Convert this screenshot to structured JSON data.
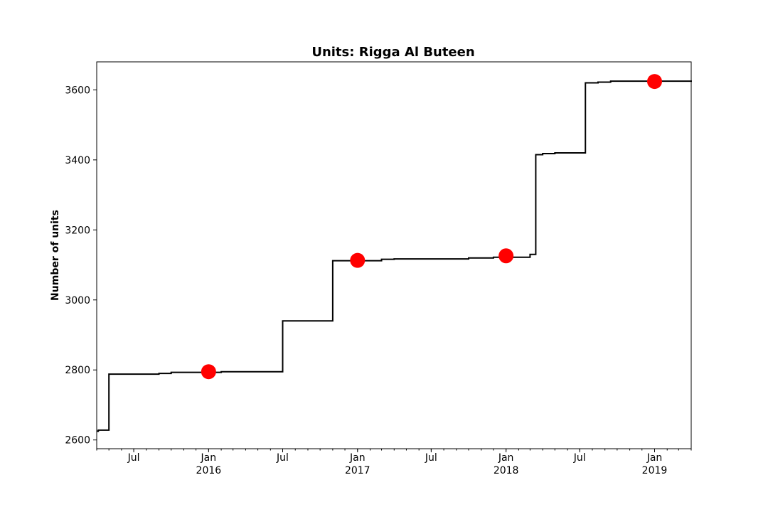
{
  "chart_data": {
    "type": "line",
    "title": "Units: Rigga Al Buteen",
    "xlabel": "",
    "ylabel": "Number of units",
    "xlim": [
      "2015-04-01",
      "2019-04-01"
    ],
    "ylim": [
      2575,
      3680
    ],
    "y_ticks": [
      2600,
      2800,
      3000,
      3200,
      3400,
      3600
    ],
    "x_ticks": [
      {
        "date": "2015-07-01",
        "label": "Jul",
        "sublabel": ""
      },
      {
        "date": "2016-01-01",
        "label": "Jan",
        "sublabel": "2016"
      },
      {
        "date": "2016-07-01",
        "label": "Jul",
        "sublabel": ""
      },
      {
        "date": "2017-01-01",
        "label": "Jan",
        "sublabel": "2017"
      },
      {
        "date": "2017-07-01",
        "label": "Jul",
        "sublabel": ""
      },
      {
        "date": "2018-01-01",
        "label": "Jan",
        "sublabel": "2018"
      },
      {
        "date": "2018-07-01",
        "label": "Jul",
        "sublabel": ""
      },
      {
        "date": "2019-01-01",
        "label": "Jan",
        "sublabel": "2019"
      }
    ],
    "grid": false,
    "series": [
      {
        "color": "#000000",
        "drawstyle": "steps-post",
        "points": [
          {
            "x": "2015-04-01",
            "y": 2625
          },
          {
            "x": "2015-04-05",
            "y": 2628
          },
          {
            "x": "2015-05-01",
            "y": 2788
          },
          {
            "x": "2015-09-01",
            "y": 2790
          },
          {
            "x": "2015-10-01",
            "y": 2793
          },
          {
            "x": "2016-02-01",
            "y": 2795
          },
          {
            "x": "2016-07-01",
            "y": 2940
          },
          {
            "x": "2016-11-01",
            "y": 3112
          },
          {
            "x": "2017-03-01",
            "y": 3116
          },
          {
            "x": "2017-04-01",
            "y": 3117
          },
          {
            "x": "2017-10-01",
            "y": 3120
          },
          {
            "x": "2017-12-01",
            "y": 3122
          },
          {
            "x": "2018-03-01",
            "y": 3130
          },
          {
            "x": "2018-03-15",
            "y": 3415
          },
          {
            "x": "2018-04-01",
            "y": 3418
          },
          {
            "x": "2018-05-01",
            "y": 3420
          },
          {
            "x": "2018-07-15",
            "y": 3620
          },
          {
            "x": "2018-08-15",
            "y": 3622
          },
          {
            "x": "2018-09-15",
            "y": 3625
          },
          {
            "x": "2019-04-01",
            "y": 3627
          }
        ]
      }
    ],
    "markers": {
      "color": "#ff0000",
      "points": [
        {
          "x": "2016-01-01",
          "y": 2795
        },
        {
          "x": "2017-01-01",
          "y": 3113
        },
        {
          "x": "2018-01-01",
          "y": 3126
        },
        {
          "x": "2019-01-01",
          "y": 3624
        }
      ]
    }
  }
}
